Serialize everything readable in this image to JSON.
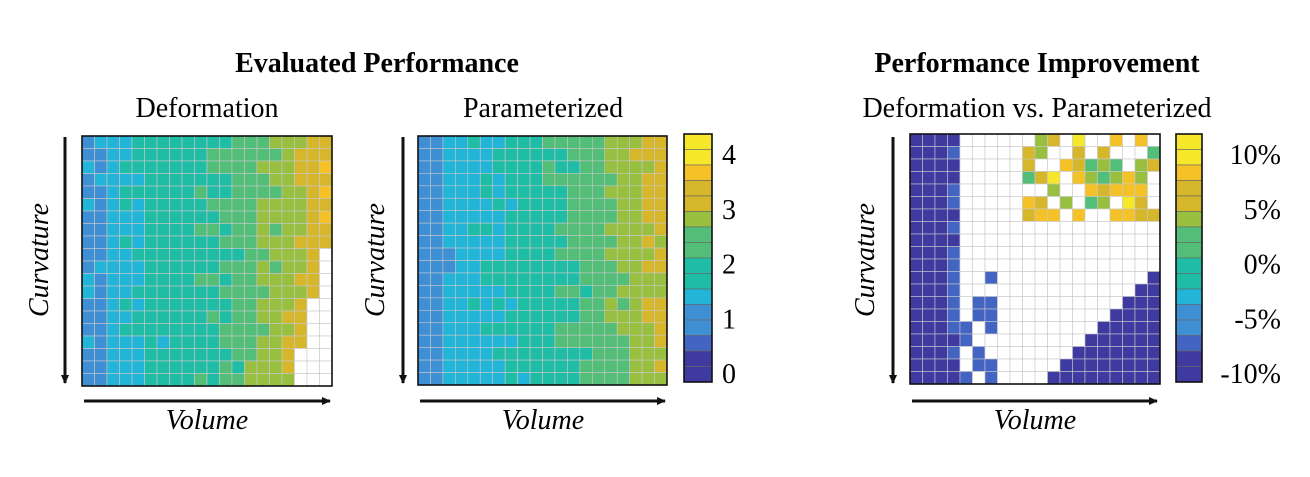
{
  "figure": {
    "left_title": "Evaluated Performance",
    "right_title": "Performance Improvement"
  },
  "palette": [
    "#3e3aa0",
    "#4364c2",
    "#3f8fd5",
    "#22b5d8",
    "#20bda6",
    "#52be78",
    "#98bf3f",
    "#d6b62a",
    "#f4c227",
    "#f5e82a"
  ],
  "chart_data": [
    {
      "type": "heatmap",
      "title": "Deformation",
      "xlabel": "Volume",
      "ylabel": "Curvature",
      "rows": 20,
      "cols": 20,
      "model": "deformation",
      "colorbar": {
        "ticks": [
          "4",
          "3",
          "2",
          "1",
          "0"
        ],
        "range": [
          0,
          4.3
        ]
      }
    },
    {
      "type": "heatmap",
      "title": "Parameterized",
      "xlabel": "Volume",
      "ylabel": "Curvature",
      "rows": 20,
      "cols": 20,
      "model": "parameterized",
      "colorbar": {
        "ticks": [
          "4",
          "3",
          "2",
          "1",
          "0"
        ],
        "range": [
          0,
          4.3
        ]
      }
    },
    {
      "type": "heatmap",
      "title": "Deformation vs. Parameterized",
      "xlabel": "Volume",
      "ylabel": "Curvature",
      "rows": 20,
      "cols": 20,
      "model": "improvement",
      "colorbar": {
        "ticks": [
          "10%",
          "5%",
          "0%",
          "-5%",
          "-10%"
        ],
        "range": [
          -12,
          12
        ]
      }
    }
  ]
}
